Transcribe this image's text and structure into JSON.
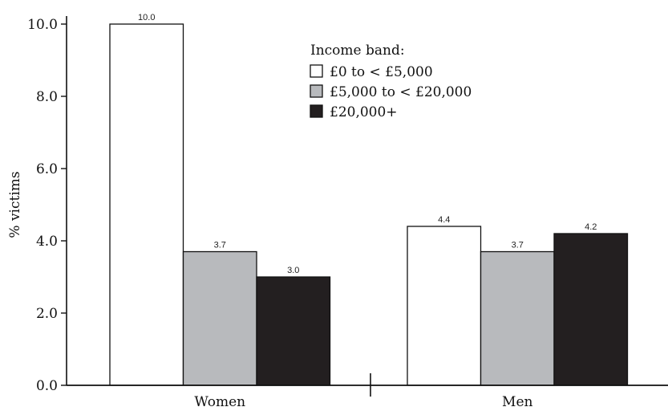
{
  "chart_data": {
    "type": "bar",
    "title": "",
    "xlabel": "",
    "ylabel": "% victims",
    "ylim": [
      0,
      10
    ],
    "yticks": [
      "0.0",
      "2.0",
      "4.0",
      "6.0",
      "8.0",
      "10.0"
    ],
    "categories": [
      "Women",
      "Men"
    ],
    "legend_title": "Income band:",
    "legend_position": "top-right",
    "grid": false,
    "series": [
      {
        "name": "£0 to < £5,000",
        "color": "#ffffff",
        "values": [
          10.0,
          4.4
        ],
        "labels": [
          "10.0",
          "4.4"
        ]
      },
      {
        "name": "£5,000 to < £20,000",
        "color": "#b8babd",
        "values": [
          3.7,
          3.7
        ],
        "labels": [
          "3.7",
          "3.7"
        ]
      },
      {
        "name": "£20,000+",
        "color": "#231f20",
        "values": [
          3.0,
          4.2
        ],
        "labels": [
          "3.0",
          "4.2"
        ]
      }
    ]
  }
}
